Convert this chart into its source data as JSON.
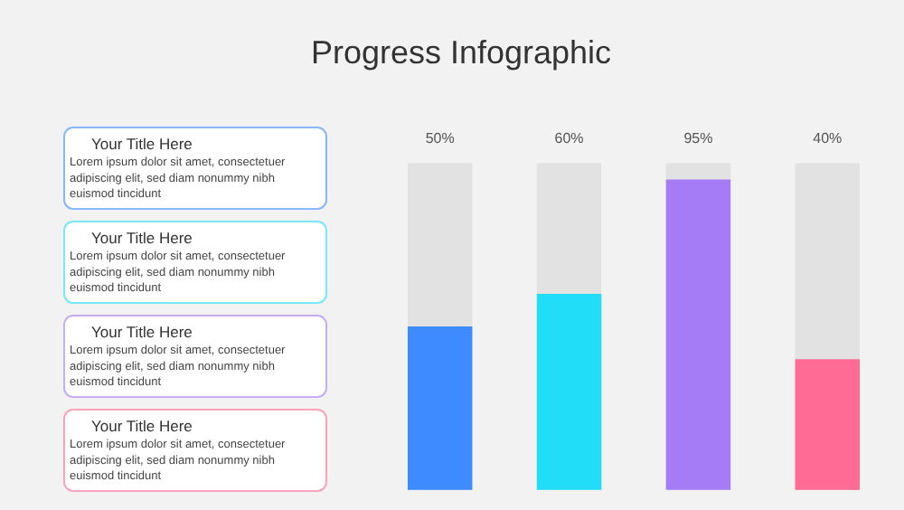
{
  "chart_data": {
    "type": "bar",
    "title": "Progress Infographic",
    "categories": [
      null,
      null,
      null,
      null
    ],
    "values": [
      50,
      60,
      95,
      40
    ],
    "colors": [
      "#3d8bff",
      "#22ddf7",
      "#a57cf5",
      "#ff6b95"
    ],
    "value_labels": [
      "50%",
      "60%",
      "95%",
      "40%"
    ],
    "ylim": [
      0,
      100
    ],
    "tick_labels": false,
    "grid": false,
    "annotations": [
      "Your Title Here",
      "Lorem ipsum dolor sit amet, consectetuer\nadipiscing elit, sed diam nonummy nibh\neuismod tincidunt",
      "Your Title Here",
      "Lorem ipsum dolor sit amet, consectetuer\nadipiscing elit, sed diam nonummy nibh\neuismod tincidunt",
      "Your Title Here",
      "Lorem ipsum dolor sit amet, consectetuer\nadipiscing elit, sed diam nonummy nibh\neuismod tincidunt",
      "Your Title Here",
      "Lorem ipsum dolor sit amet, consectetuer\nadipiscing elit, sed diam nonummy nibh\neuismod tincidunt"
    ]
  }
}
